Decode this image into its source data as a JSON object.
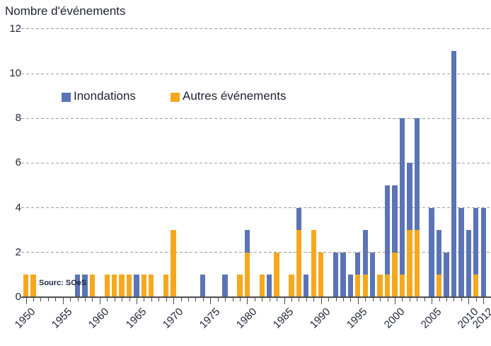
{
  "title": "Nombre d'événements",
  "source_note": "Sourc: SOeS",
  "legend": {
    "items": [
      {
        "label": "Inondations",
        "color": "#5b74b5"
      },
      {
        "label": "Autres événements",
        "color": "#f5a81e"
      }
    ]
  },
  "colors": {
    "inondations_blue": "#5b74b5",
    "autres_orange": "#f5a81e",
    "text": "#20263a",
    "gridline": "#9c9c9c",
    "axis": "#4d4d4d"
  },
  "chart_data": {
    "type": "bar",
    "stacked": true,
    "title": "Nombre d'événements",
    "xlabel": "",
    "ylabel": "Nombre d'événements",
    "ylim": [
      0,
      12
    ],
    "ytick_step": 2,
    "ytick_labels": [
      "0",
      "2",
      "4",
      "6",
      "8",
      "10",
      "12"
    ],
    "grid": "horizontal dashed",
    "legend_position": "top-left inside",
    "x_start": 1950,
    "x_end": 2012,
    "xtick_labels": [
      "1950",
      "1955",
      "1960",
      "1965",
      "1970",
      "1975",
      "1980",
      "1985",
      "1990",
      "1995",
      "2000",
      "2005",
      "2010",
      "2012"
    ],
    "categories": [
      1950,
      1951,
      1952,
      1953,
      1954,
      1955,
      1956,
      1957,
      1958,
      1959,
      1960,
      1961,
      1962,
      1963,
      1964,
      1965,
      1966,
      1967,
      1968,
      1969,
      1970,
      1971,
      1972,
      1973,
      1974,
      1975,
      1976,
      1977,
      1978,
      1979,
      1980,
      1981,
      1982,
      1983,
      1984,
      1985,
      1986,
      1987,
      1988,
      1989,
      1990,
      1991,
      1992,
      1993,
      1994,
      1995,
      1996,
      1997,
      1998,
      1999,
      2000,
      2001,
      2002,
      2003,
      2004,
      2005,
      2006,
      2007,
      2008,
      2009,
      2010,
      2011,
      2012
    ],
    "series": [
      {
        "name": "Autres événements",
        "color": "#f5a81e",
        "stack_order": "bottom",
        "values": [
          1,
          1,
          0,
          0,
          0,
          0,
          0,
          0,
          0,
          1,
          0,
          1,
          1,
          1,
          1,
          0,
          1,
          1,
          0,
          1,
          3,
          0,
          0,
          0,
          0,
          0,
          0,
          0,
          0,
          1,
          2,
          0,
          1,
          0,
          2,
          0,
          1,
          3,
          0,
          3,
          2,
          0,
          0,
          0,
          0,
          1,
          1,
          0,
          1,
          1,
          2,
          1,
          3,
          3,
          0,
          0,
          1,
          0,
          0,
          0,
          0,
          1,
          0
        ]
      },
      {
        "name": "Inondations",
        "color": "#5b74b5",
        "stack_order": "top",
        "values": [
          0,
          0,
          0,
          0,
          0,
          0,
          0,
          1,
          1,
          0,
          0,
          0,
          0,
          0,
          0,
          1,
          0,
          0,
          0,
          0,
          0,
          0,
          0,
          0,
          1,
          0,
          0,
          1,
          0,
          0,
          1,
          0,
          0,
          1,
          0,
          0,
          0,
          1,
          1,
          0,
          0,
          0,
          2,
          2,
          1,
          1,
          2,
          2,
          0,
          4,
          3,
          7,
          3,
          5,
          0,
          4,
          2,
          2,
          11,
          4,
          3,
          3,
          4
        ]
      }
    ]
  }
}
